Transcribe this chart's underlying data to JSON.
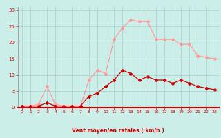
{
  "x": [
    0,
    1,
    2,
    3,
    4,
    5,
    6,
    7,
    8,
    9,
    10,
    11,
    12,
    13,
    14,
    15,
    16,
    17,
    18,
    19,
    20,
    21,
    22,
    23
  ],
  "rafales": [
    0.5,
    0.5,
    1.0,
    6.5,
    1.0,
    0.5,
    0.5,
    0.5,
    8.5,
    11.5,
    10.5,
    21.0,
    24.5,
    27.0,
    26.5,
    26.5,
    21.0,
    21.0,
    21.0,
    19.5,
    19.5,
    16.0,
    15.5,
    15.0
  ],
  "moyen": [
    0.5,
    0.5,
    0.5,
    1.5,
    0.5,
    0.5,
    0.5,
    0.5,
    3.5,
    4.5,
    6.5,
    8.5,
    11.5,
    10.5,
    8.5,
    9.5,
    8.5,
    8.5,
    7.5,
    8.5,
    7.5,
    6.5,
    6.0,
    5.5
  ],
  "bg_color": "#cceee8",
  "grid_color": "#aad4ce",
  "rafales_color": "#ff9999",
  "moyen_color": "#cc0000",
  "xlabel": "Vent moyen/en rafales ( km/h )",
  "xlabel_color": "#cc0000",
  "tick_color": "#cc0000",
  "yticks": [
    0,
    5,
    10,
    15,
    20,
    25,
    30
  ],
  "xticks": [
    0,
    1,
    2,
    3,
    4,
    5,
    6,
    7,
    8,
    9,
    10,
    11,
    12,
    13,
    14,
    15,
    16,
    17,
    18,
    19,
    20,
    21,
    22,
    23
  ],
  "ylim": [
    0,
    31
  ],
  "xlim": [
    -0.5,
    23.5
  ],
  "arrow_color": "#ff8888"
}
